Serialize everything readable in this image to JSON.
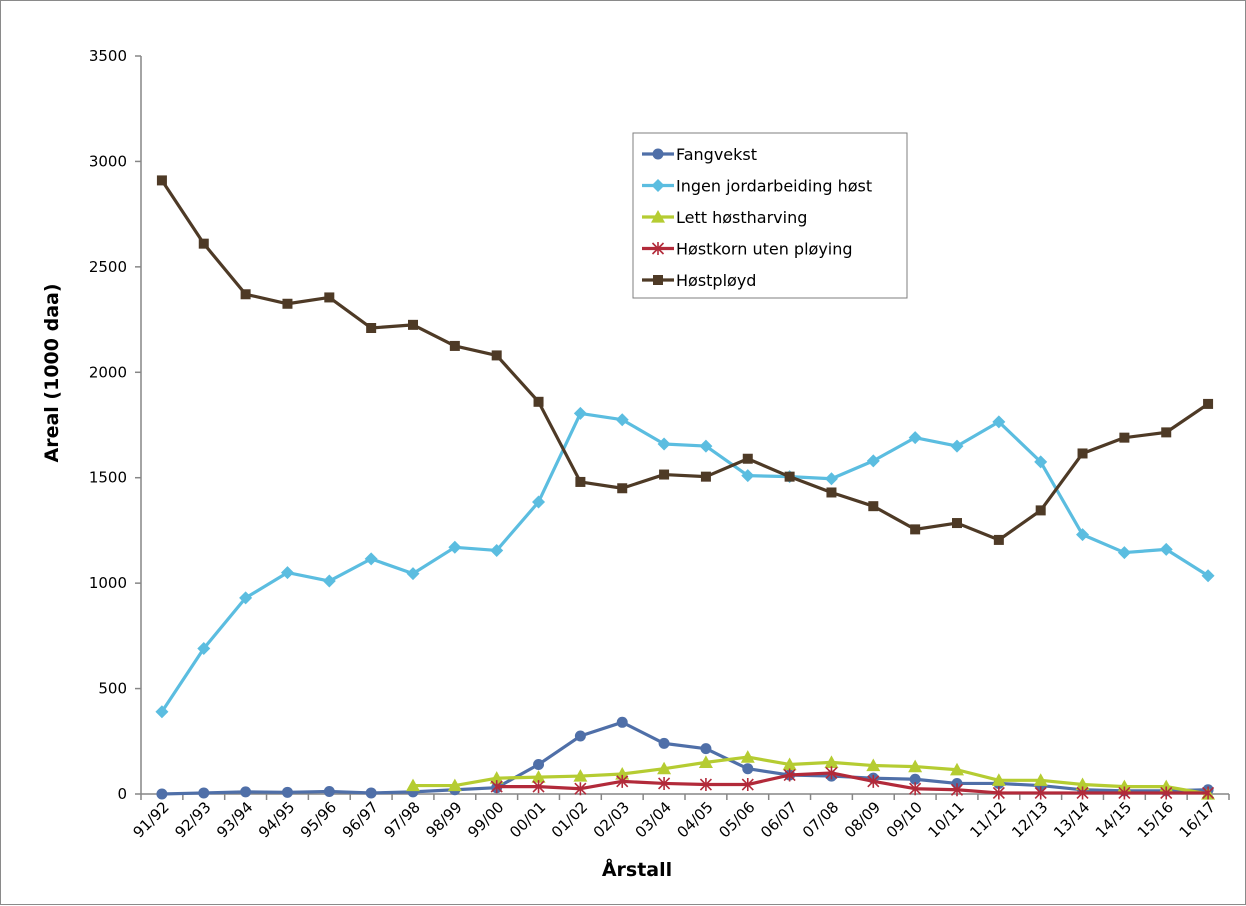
{
  "chart_data": {
    "type": "line",
    "title": "",
    "xlabel": "Årstall",
    "ylabel": "Areal (1000 daa)",
    "ylim": [
      0,
      3500
    ],
    "yticks": [
      0,
      500,
      1000,
      1500,
      2000,
      2500,
      3000,
      3500
    ],
    "grid": false,
    "legend_position": "top-center",
    "categories": [
      "91/92",
      "92/93",
      "93/94",
      "94/95",
      "95/96",
      "96/97",
      "97/98",
      "98/99",
      "99/00",
      "00/01",
      "01/02",
      "02/03",
      "03/04",
      "04/05",
      "05/06",
      "06/07",
      "07/08",
      "08/09",
      "09/10",
      "10/11",
      "11/12",
      "12/13",
      "13/14",
      "14/15",
      "15/16",
      "16/17"
    ],
    "series": [
      {
        "name": "Fangvekst",
        "color": "#4f6fa8",
        "marker": "circle",
        "values": [
          0,
          5,
          10,
          8,
          12,
          5,
          10,
          20,
          30,
          140,
          275,
          340,
          240,
          215,
          120,
          90,
          85,
          75,
          70,
          50,
          50,
          40,
          20,
          15,
          15,
          20
        ]
      },
      {
        "name": "Ingen jordarbeiding høst",
        "color": "#5bbde0",
        "marker": "diamond",
        "values": [
          390,
          690,
          930,
          1050,
          1010,
          1115,
          1045,
          1170,
          1155,
          1385,
          1805,
          1775,
          1660,
          1650,
          1510,
          1505,
          1495,
          1580,
          1690,
          1650,
          1765,
          1575,
          1230,
          1145,
          1160,
          1035
        ]
      },
      {
        "name": "Lett høstharving",
        "color": "#b5cc32",
        "marker": "triangle",
        "values": [
          null,
          null,
          null,
          null,
          null,
          null,
          40,
          40,
          75,
          80,
          85,
          95,
          120,
          150,
          175,
          140,
          150,
          135,
          130,
          115,
          65,
          65,
          45,
          35,
          35,
          0
        ]
      },
      {
        "name": "Høstkorn uten pløying",
        "color": "#b22a3a",
        "marker": "star",
        "values": [
          null,
          null,
          null,
          null,
          null,
          null,
          null,
          null,
          35,
          35,
          25,
          60,
          50,
          45,
          45,
          90,
          100,
          60,
          25,
          20,
          5,
          5,
          5,
          5,
          5,
          5
        ]
      },
      {
        "name": "Høstpløyd",
        "color": "#4e3a26",
        "marker": "square",
        "values": [
          2910,
          2610,
          2370,
          2325,
          2355,
          2210,
          2225,
          2125,
          2080,
          1860,
          1480,
          1450,
          1515,
          1505,
          1590,
          1505,
          1430,
          1365,
          1255,
          1285,
          1205,
          1345,
          1615,
          1690,
          1715,
          1850
        ]
      }
    ]
  }
}
